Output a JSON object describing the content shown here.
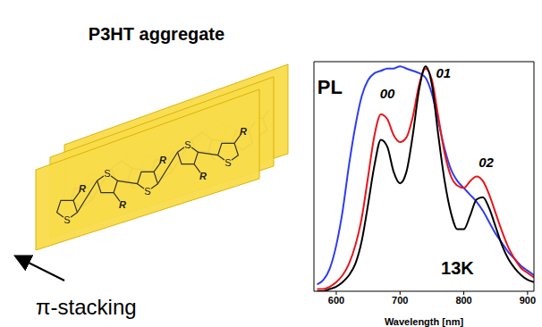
{
  "diagram": {
    "title": "P3HT aggregate",
    "arrow_label": "π-stacking",
    "ring_atom": "S",
    "side_chain": "R"
  },
  "chart_data": {
    "type": "line",
    "x_label": "Wavelength [nm]",
    "x": [
      570,
      580,
      590,
      600,
      610,
      620,
      630,
      640,
      650,
      660,
      670,
      680,
      690,
      700,
      710,
      720,
      730,
      740,
      750,
      760,
      770,
      780,
      790,
      800,
      810,
      820,
      830,
      840,
      850,
      860,
      870,
      880,
      890,
      900,
      910
    ],
    "series": [
      {
        "color": "#2f3cf0",
        "values": [
          0.03,
          0.05,
          0.1,
          0.2,
          0.35,
          0.55,
          0.72,
          0.85,
          0.92,
          0.95,
          0.96,
          0.97,
          0.97,
          0.98,
          0.97,
          0.96,
          0.95,
          0.93,
          0.86,
          0.74,
          0.62,
          0.53,
          0.48,
          0.45,
          0.42,
          0.39,
          0.35,
          0.3,
          0.25,
          0.21,
          0.17,
          0.14,
          0.11,
          0.09,
          0.07
        ]
      },
      {
        "color": "#e8161b",
        "values": [
          0.01,
          0.01,
          0.02,
          0.04,
          0.07,
          0.12,
          0.2,
          0.32,
          0.5,
          0.68,
          0.77,
          0.75,
          0.68,
          0.65,
          0.67,
          0.76,
          0.9,
          0.97,
          0.92,
          0.76,
          0.6,
          0.5,
          0.46,
          0.45,
          0.48,
          0.5,
          0.48,
          0.42,
          0.34,
          0.26,
          0.19,
          0.14,
          0.1,
          0.08,
          0.06
        ]
      },
      {
        "color": "#000000",
        "values": [
          0,
          0,
          0.01,
          0.02,
          0.04,
          0.07,
          0.12,
          0.22,
          0.38,
          0.55,
          0.66,
          0.63,
          0.52,
          0.47,
          0.52,
          0.68,
          0.88,
          0.98,
          0.9,
          0.68,
          0.48,
          0.34,
          0.27,
          0.27,
          0.33,
          0.4,
          0.41,
          0.36,
          0.28,
          0.2,
          0.14,
          0.1,
          0.07,
          0.05,
          0.04
        ]
      }
    ],
    "xlim": [
      565,
      910
    ],
    "xticks": [
      600,
      700,
      800,
      900
    ],
    "ylim": [
      0,
      1
    ],
    "yticks": [],
    "tick_labels": "x",
    "grid": false,
    "annotations": [
      {
        "text": "PL",
        "x": 590,
        "y": 0.89
      },
      {
        "text": "00",
        "x": 680,
        "y": 0.86
      },
      {
        "text": "01",
        "x": 768,
        "y": 0.95
      },
      {
        "text": "02",
        "x": 835,
        "y": 0.56
      },
      {
        "text": "13K",
        "x": 790,
        "y": 0.1
      }
    ]
  }
}
